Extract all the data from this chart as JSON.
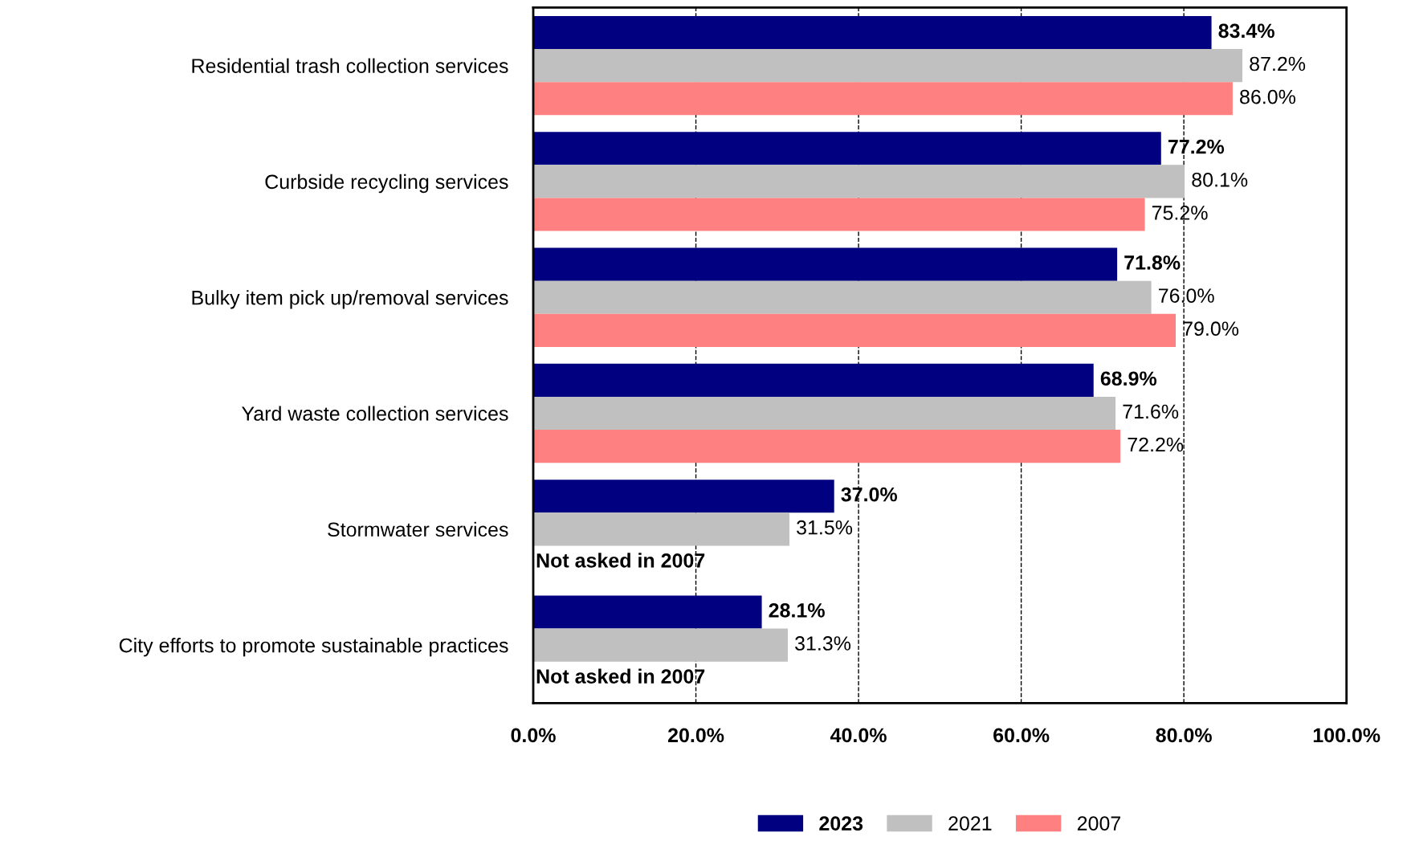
{
  "chart_data": {
    "type": "bar",
    "orientation": "horizontal",
    "categories": [
      "Residential trash collection services",
      "Curbside recycling services",
      "Bulky item pick up/removal services",
      "Yard waste collection services",
      "Stormwater services",
      "City efforts to promote sustainable practices"
    ],
    "series": [
      {
        "name": "2023",
        "color": "#000080",
        "values": [
          83.4,
          77.2,
          71.8,
          68.9,
          37.0,
          28.1
        ],
        "value_labels": [
          "83.4%",
          "77.2%",
          "71.8%",
          "68.9%",
          "37.0%",
          "28.1%"
        ]
      },
      {
        "name": "2021",
        "color": "#c0c0c0",
        "values": [
          87.2,
          80.1,
          76.0,
          71.6,
          31.5,
          31.3
        ],
        "value_labels": [
          "87.2%",
          "80.1%",
          "76.0%",
          "71.6%",
          "31.5%",
          "31.3%"
        ]
      },
      {
        "name": "2007",
        "color": "#ff8080",
        "values": [
          86.0,
          75.2,
          79.0,
          72.2,
          null,
          null
        ],
        "value_labels": [
          "86.0%",
          "75.2%",
          "79.0%",
          "72.2%",
          "Not asked in 2007",
          "Not asked in 2007"
        ]
      }
    ],
    "xlim": [
      0,
      100
    ],
    "xticks": [
      {
        "value": 0,
        "label": "0.0%"
      },
      {
        "value": 20,
        "label": "20.0%"
      },
      {
        "value": 40,
        "label": "40.0%"
      },
      {
        "value": 60,
        "label": "60.0%"
      },
      {
        "value": 80,
        "label": "80.0%"
      },
      {
        "value": 100,
        "label": "100.0%"
      }
    ],
    "grid": "x",
    "legend": "bottom"
  }
}
